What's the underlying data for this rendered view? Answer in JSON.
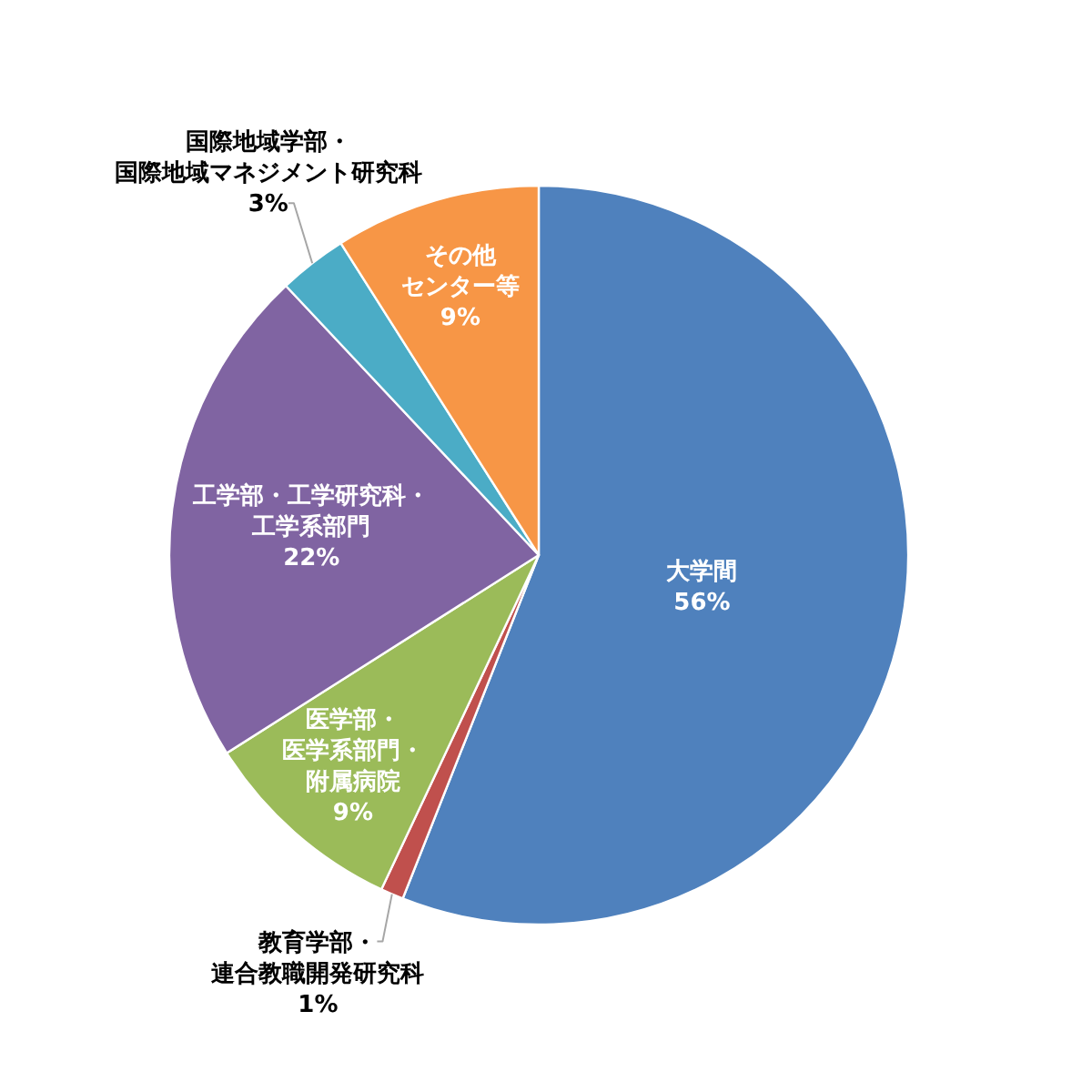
{
  "chart_data": {
    "type": "pie",
    "categories": [
      "大学間",
      "教育学部・連合教職開発研究科",
      "医学部・医学系部門・附属病院",
      "工学部・工学研究科・工学系部門",
      "国際地域学部・国際地域マネジメント研究科",
      "その他センター等"
    ],
    "values": [
      56,
      1,
      9,
      22,
      3,
      9
    ],
    "value_labels": [
      "56%",
      "1%",
      "9%",
      "22%",
      "3%",
      "9%"
    ],
    "colors": [
      "#4f81bd",
      "#c0504d",
      "#9bbb59",
      "#8064a2",
      "#4bacc6",
      "#f79646"
    ]
  }
}
